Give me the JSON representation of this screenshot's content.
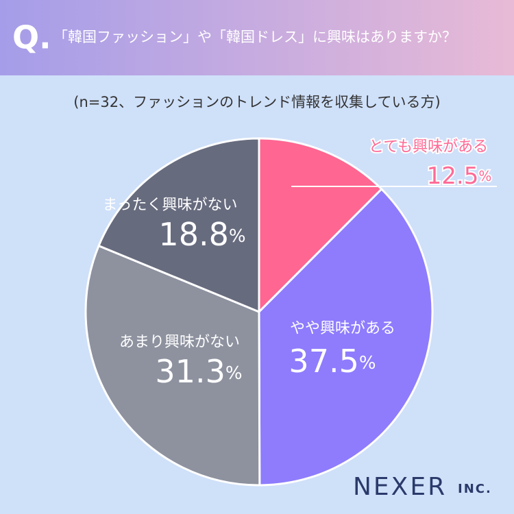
{
  "chart_data": {
    "type": "pie",
    "title_prefix": "Q.",
    "title": "「韓国ファッション」や「韓国ドレス」に興味はありますか？",
    "subtitle": "(n=32、ファッションのトレンド情報を収集している方)",
    "categories": [
      "とても興味がある",
      "やや興味がある",
      "あまり興味がない",
      "まったく興味がない"
    ],
    "values": [
      12.5,
      37.5,
      31.3,
      18.8
    ],
    "value_labels": [
      "12.5%",
      "37.5%",
      "31.3%",
      "18.8%"
    ],
    "colors": [
      "#ff6691",
      "#8e7cfd",
      "#8e929f",
      "#676b7e"
    ],
    "logo": "NEXER",
    "logo_suffix": "INC."
  }
}
